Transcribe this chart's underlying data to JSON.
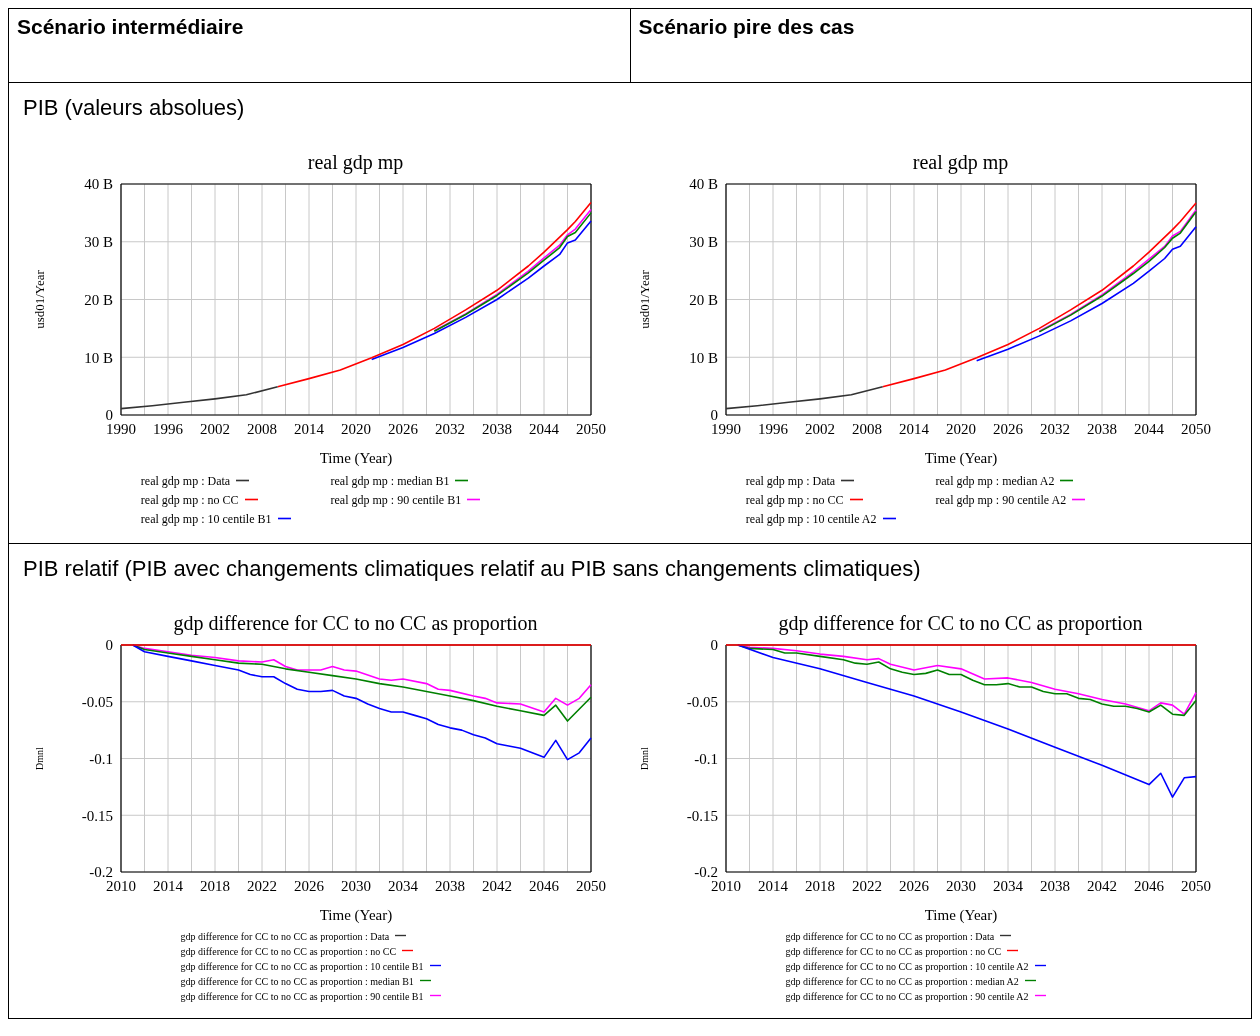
{
  "chart_data": [
    {
      "type": "line",
      "title": "real gdp mp",
      "xlabel": "Time (Year)",
      "ylabel": "usd01/Year",
      "annotations": [
        "Scénario intermédiaire",
        "PIB (valeurs absolues)"
      ],
      "grid": true,
      "legend": "bottom",
      "xlim": [
        1990,
        2050
      ],
      "xticks": [
        1990,
        {
          "value": 1993,
          "label": null
        },
        1996,
        {
          "value": 1999,
          "label": null
        },
        2002,
        {
          "value": 2005,
          "label": null
        },
        2008,
        {
          "value": 2011,
          "label": null
        },
        2014,
        {
          "value": 2017,
          "label": null
        },
        2020,
        {
          "value": 2023,
          "label": null
        },
        2026,
        {
          "value": 2029,
          "label": null
        },
        2032,
        {
          "value": 2035,
          "label": null
        },
        2038,
        {
          "value": 2041,
          "label": null
        },
        2044,
        {
          "value": 2047,
          "label": null
        },
        2050
      ],
      "ylim": [
        0,
        40
      ],
      "yticks": [
        0,
        {
          "value": 10,
          "label": "10 B"
        },
        {
          "value": 20,
          "label": "20 B"
        },
        {
          "value": 30,
          "label": "30 B"
        },
        {
          "value": 40,
          "label": "40 B"
        }
      ],
      "series": [
        {
          "name": "real gdp mp : Data",
          "color": "#333333",
          "x": [
            1990,
            1994,
            1998,
            2002,
            2006,
            2010
          ],
          "values": [
            1.1,
            1.6,
            2.2,
            2.8,
            3.5,
            4.9
          ]
        },
        {
          "name": "real gdp mp : no CC",
          "color": "#ff0000",
          "x": [
            2010,
            2014,
            2018,
            2022,
            2026,
            2030,
            2034,
            2038,
            2042,
            2044,
            2046,
            2047,
            2048,
            2050
          ],
          "values": [
            4.9,
            6.3,
            7.8,
            9.9,
            12.2,
            15.0,
            18.2,
            21.6,
            25.8,
            28.2,
            30.8,
            32.1,
            33.5,
            36.8
          ]
        },
        {
          "name": "real gdp mp : 10 centile B1",
          "color": "#0000ff",
          "x": [
            2022,
            2026,
            2030,
            2034,
            2038,
            2042,
            2044,
            2046,
            2047,
            2048,
            2050
          ],
          "values": [
            9.6,
            11.7,
            14.1,
            16.9,
            20.0,
            23.7,
            25.8,
            27.8,
            29.8,
            30.3,
            33.6
          ]
        },
        {
          "name": "real gdp mp : median B1",
          "color": "#008000",
          "x": [
            2030,
            2034,
            2038,
            2042,
            2044,
            2046,
            2047,
            2048,
            2050
          ],
          "values": [
            14.5,
            17.4,
            20.7,
            24.6,
            26.8,
            29.0,
            30.9,
            31.6,
            35.0
          ]
        },
        {
          "name": "real gdp mp : 90 centile B1",
          "color": "#ff00ff",
          "x": [
            2030,
            2034,
            2038,
            2042,
            2044,
            2046,
            2047,
            2048,
            2050
          ],
          "values": [
            14.6,
            17.5,
            20.9,
            24.9,
            27.2,
            29.4,
            31.2,
            32.2,
            35.6
          ]
        }
      ]
    },
    {
      "type": "line",
      "title": "real gdp mp",
      "xlabel": "Time (Year)",
      "ylabel": "usd01/Year",
      "annotations": [
        "Scénario pire des cas"
      ],
      "grid": true,
      "legend": "bottom",
      "xlim": [
        1990,
        2050
      ],
      "xticks": [
        1990,
        {
          "value": 1993,
          "label": null
        },
        1996,
        {
          "value": 1999,
          "label": null
        },
        2002,
        {
          "value": 2005,
          "label": null
        },
        2008,
        {
          "value": 2011,
          "label": null
        },
        2014,
        {
          "value": 2017,
          "label": null
        },
        2020,
        {
          "value": 2023,
          "label": null
        },
        2026,
        {
          "value": 2029,
          "label": null
        },
        2032,
        {
          "value": 2035,
          "label": null
        },
        2038,
        {
          "value": 2041,
          "label": null
        },
        2044,
        {
          "value": 2047,
          "label": null
        },
        2050
      ],
      "ylim": [
        0,
        40
      ],
      "yticks": [
        0,
        {
          "value": 10,
          "label": "10 B"
        },
        {
          "value": 20,
          "label": "20 B"
        },
        {
          "value": 30,
          "label": "30 B"
        },
        {
          "value": 40,
          "label": "40 B"
        }
      ],
      "series": [
        {
          "name": "real gdp mp : Data",
          "color": "#333333",
          "x": [
            1990,
            1994,
            1998,
            2002,
            2006,
            2010
          ],
          "values": [
            1.1,
            1.6,
            2.2,
            2.8,
            3.5,
            4.9
          ]
        },
        {
          "name": "real gdp mp : no CC",
          "color": "#ff0000",
          "x": [
            2010,
            2014,
            2018,
            2022,
            2026,
            2030,
            2034,
            2038,
            2042,
            2044,
            2046,
            2047,
            2048,
            2050
          ],
          "values": [
            4.9,
            6.3,
            7.8,
            9.9,
            12.2,
            15.0,
            18.2,
            21.6,
            25.8,
            28.2,
            30.8,
            32.1,
            33.5,
            36.7
          ]
        },
        {
          "name": "real gdp mp : 10 centile A2",
          "color": "#0000ff",
          "x": [
            2022,
            2026,
            2030,
            2034,
            2038,
            2042,
            2044,
            2046,
            2047,
            2048,
            2050
          ],
          "values": [
            9.4,
            11.4,
            13.7,
            16.3,
            19.3,
            22.8,
            24.9,
            27.1,
            28.7,
            29.2,
            32.6
          ]
        },
        {
          "name": "real gdp mp : median A2",
          "color": "#008000",
          "x": [
            2030,
            2034,
            2038,
            2042,
            2044,
            2046,
            2047,
            2048,
            2050
          ],
          "values": [
            14.4,
            17.3,
            20.6,
            24.5,
            26.6,
            29.0,
            30.6,
            31.5,
            35.2
          ]
        },
        {
          "name": "real gdp mp : 90 centile A2",
          "color": "#ff00ff",
          "x": [
            2030,
            2034,
            2038,
            2042,
            2044,
            2046,
            2047,
            2048,
            2050
          ],
          "values": [
            14.5,
            17.4,
            20.8,
            24.8,
            27.0,
            29.2,
            31.0,
            31.8,
            35.5
          ]
        }
      ]
    },
    {
      "type": "line",
      "title": "gdp difference for CC to no CC as proportion",
      "xlabel": "Time (Year)",
      "ylabel": "Dmnl",
      "annotations": [
        "PIB relatif (PIB avec changements climatiques relatif au PIB sans changements climatiques)"
      ],
      "grid": true,
      "legend": "bottom",
      "xlim": [
        2010,
        2050
      ],
      "xticks": [
        2010,
        {
          "value": 2012,
          "label": null
        },
        2014,
        {
          "value": 2016,
          "label": null
        },
        2018,
        {
          "value": 2020,
          "label": null
        },
        2022,
        {
          "value": 2024,
          "label": null
        },
        2026,
        {
          "value": 2028,
          "label": null
        },
        2030,
        {
          "value": 2032,
          "label": null
        },
        2034,
        {
          "value": 2036,
          "label": null
        },
        2038,
        {
          "value": 2040,
          "label": null
        },
        2042,
        {
          "value": 2044,
          "label": null
        },
        2046,
        {
          "value": 2048,
          "label": null
        },
        2050
      ],
      "ylim": [
        -0.2,
        0
      ],
      "yticks": [
        -0.2,
        -0.15,
        -0.1,
        -0.05,
        0
      ],
      "series": [
        {
          "name": "gdp difference for CC to no CC as proportion : Data",
          "color": "#333333"
        },
        {
          "name": "gdp difference for CC to no CC as proportion : no CC",
          "color": "#ff0000",
          "x": [
            2010,
            2050
          ],
          "values": [
            0,
            0
          ]
        },
        {
          "name": "gdp difference for CC to no CC as proportion : 10 centile B1",
          "color": "#0000ff",
          "x": [
            2011,
            2012,
            2014,
            2016,
            2018,
            2020,
            2021,
            2022,
            2023,
            2024,
            2025,
            2026,
            2027,
            2028,
            2029,
            2030,
            2031,
            2032,
            2033,
            2034,
            2035,
            2036,
            2037,
            2038,
            2039,
            2040,
            2041,
            2042,
            2043,
            2044,
            2045,
            2046,
            2047,
            2048,
            2049,
            2050
          ],
          "values": [
            0,
            -0.006,
            -0.01,
            -0.014,
            -0.018,
            -0.022,
            -0.026,
            -0.028,
            -0.028,
            -0.034,
            -0.039,
            -0.041,
            -0.041,
            -0.04,
            -0.045,
            -0.047,
            -0.052,
            -0.056,
            -0.059,
            -0.059,
            -0.062,
            -0.065,
            -0.07,
            -0.073,
            -0.075,
            -0.079,
            -0.082,
            -0.087,
            -0.089,
            -0.091,
            -0.095,
            -0.099,
            -0.084,
            -0.101,
            -0.095,
            -0.082
          ]
        },
        {
          "name": "gdp difference for CC to no CC as proportion : median B1",
          "color": "#008000",
          "x": [
            2011,
            2012,
            2014,
            2016,
            2018,
            2020,
            2022,
            2023,
            2024,
            2026,
            2028,
            2030,
            2032,
            2034,
            2036,
            2038,
            2040,
            2042,
            2044,
            2046,
            2047,
            2048,
            2050
          ],
          "values": [
            0,
            -0.004,
            -0.007,
            -0.01,
            -0.013,
            -0.016,
            -0.017,
            -0.019,
            -0.021,
            -0.024,
            -0.027,
            -0.03,
            -0.034,
            -0.037,
            -0.041,
            -0.045,
            -0.049,
            -0.054,
            -0.058,
            -0.062,
            -0.053,
            -0.067,
            -0.046
          ]
        },
        {
          "name": "gdp difference for CC to no CC as proportion : 90 centile B1",
          "color": "#ff00ff",
          "x": [
            2011,
            2012,
            2014,
            2016,
            2018,
            2020,
            2022,
            2023,
            2024,
            2025,
            2026,
            2027,
            2028,
            2029,
            2030,
            2032,
            2033,
            2034,
            2036,
            2037,
            2038,
            2040,
            2041,
            2042,
            2044,
            2046,
            2047,
            2048,
            2049,
            2050
          ],
          "values": [
            0,
            -0.003,
            -0.006,
            -0.009,
            -0.011,
            -0.014,
            -0.015,
            -0.013,
            -0.019,
            -0.022,
            -0.022,
            -0.022,
            -0.019,
            -0.022,
            -0.023,
            -0.03,
            -0.031,
            -0.03,
            -0.034,
            -0.039,
            -0.04,
            -0.045,
            -0.047,
            -0.051,
            -0.052,
            -0.059,
            -0.047,
            -0.053,
            -0.047,
            -0.035
          ]
        }
      ]
    },
    {
      "type": "line",
      "title": "gdp difference for CC to no CC as proportion",
      "xlabel": "Time (Year)",
      "ylabel": "Dmnl",
      "grid": true,
      "legend": "bottom",
      "xlim": [
        2010,
        2050
      ],
      "xticks": [
        2010,
        {
          "value": 2012,
          "label": null
        },
        2014,
        {
          "value": 2016,
          "label": null
        },
        2018,
        {
          "value": 2020,
          "label": null
        },
        2022,
        {
          "value": 2024,
          "label": null
        },
        2026,
        {
          "value": 2028,
          "label": null
        },
        2030,
        {
          "value": 2032,
          "label": null
        },
        2034,
        {
          "value": 2036,
          "label": null
        },
        2038,
        {
          "value": 2040,
          "label": null
        },
        2042,
        {
          "value": 2044,
          "label": null
        },
        2046,
        {
          "value": 2048,
          "label": null
        },
        2050
      ],
      "ylim": [
        -0.2,
        0
      ],
      "yticks": [
        -0.2,
        -0.15,
        -0.1,
        -0.05,
        0
      ],
      "series": [
        {
          "name": "gdp difference for CC to no CC as proportion : Data",
          "color": "#333333"
        },
        {
          "name": "gdp difference for CC to no CC as proportion : no CC",
          "color": "#ff0000",
          "x": [
            2010,
            2050
          ],
          "values": [
            0,
            0
          ]
        },
        {
          "name": "gdp difference for CC to no CC as proportion : 10 centile A2",
          "color": "#0000ff",
          "x": [
            2011,
            2014,
            2018,
            2022,
            2026,
            2030,
            2034,
            2038,
            2042,
            2046,
            2047,
            2048,
            2049,
            2050
          ],
          "values": [
            0,
            -0.011,
            -0.021,
            -0.033,
            -0.045,
            -0.059,
            -0.074,
            -0.09,
            -0.106,
            -0.123,
            -0.113,
            -0.134,
            -0.117,
            -0.116
          ]
        },
        {
          "name": "gdp difference for CC to no CC as proportion : median A2",
          "color": "#008000",
          "x": [
            2011,
            2012,
            2014,
            2015,
            2016,
            2018,
            2020,
            2021,
            2022,
            2023,
            2024,
            2025,
            2026,
            2027,
            2028,
            2029,
            2030,
            2031,
            2032,
            2033,
            2034,
            2035,
            2036,
            2037,
            2038,
            2039,
            2040,
            2041,
            2042,
            2043,
            2044,
            2045,
            2046,
            2047,
            2048,
            2049,
            2050
          ],
          "values": [
            0,
            -0.003,
            -0.004,
            -0.007,
            -0.007,
            -0.01,
            -0.013,
            -0.016,
            -0.017,
            -0.015,
            -0.021,
            -0.024,
            -0.026,
            -0.025,
            -0.022,
            -0.026,
            -0.026,
            -0.031,
            -0.035,
            -0.035,
            -0.034,
            -0.037,
            -0.037,
            -0.041,
            -0.043,
            -0.043,
            -0.047,
            -0.048,
            -0.052,
            -0.054,
            -0.054,
            -0.056,
            -0.059,
            -0.053,
            -0.061,
            -0.062,
            -0.049
          ]
        },
        {
          "name": "gdp difference for CC to no CC as proportion : 90 centile A2",
          "color": "#ff00ff",
          "x": [
            2011,
            2012,
            2014,
            2016,
            2018,
            2020,
            2022,
            2023,
            2024,
            2026,
            2028,
            2030,
            2032,
            2034,
            2036,
            2038,
            2040,
            2042,
            2044,
            2046,
            2047,
            2048,
            2049,
            2050
          ],
          "values": [
            0,
            -0.002,
            -0.003,
            -0.005,
            -0.008,
            -0.01,
            -0.013,
            -0.012,
            -0.017,
            -0.022,
            -0.018,
            -0.021,
            -0.03,
            -0.029,
            -0.033,
            -0.039,
            -0.043,
            -0.048,
            -0.052,
            -0.058,
            -0.051,
            -0.053,
            -0.061,
            -0.042
          ]
        }
      ]
    }
  ]
}
